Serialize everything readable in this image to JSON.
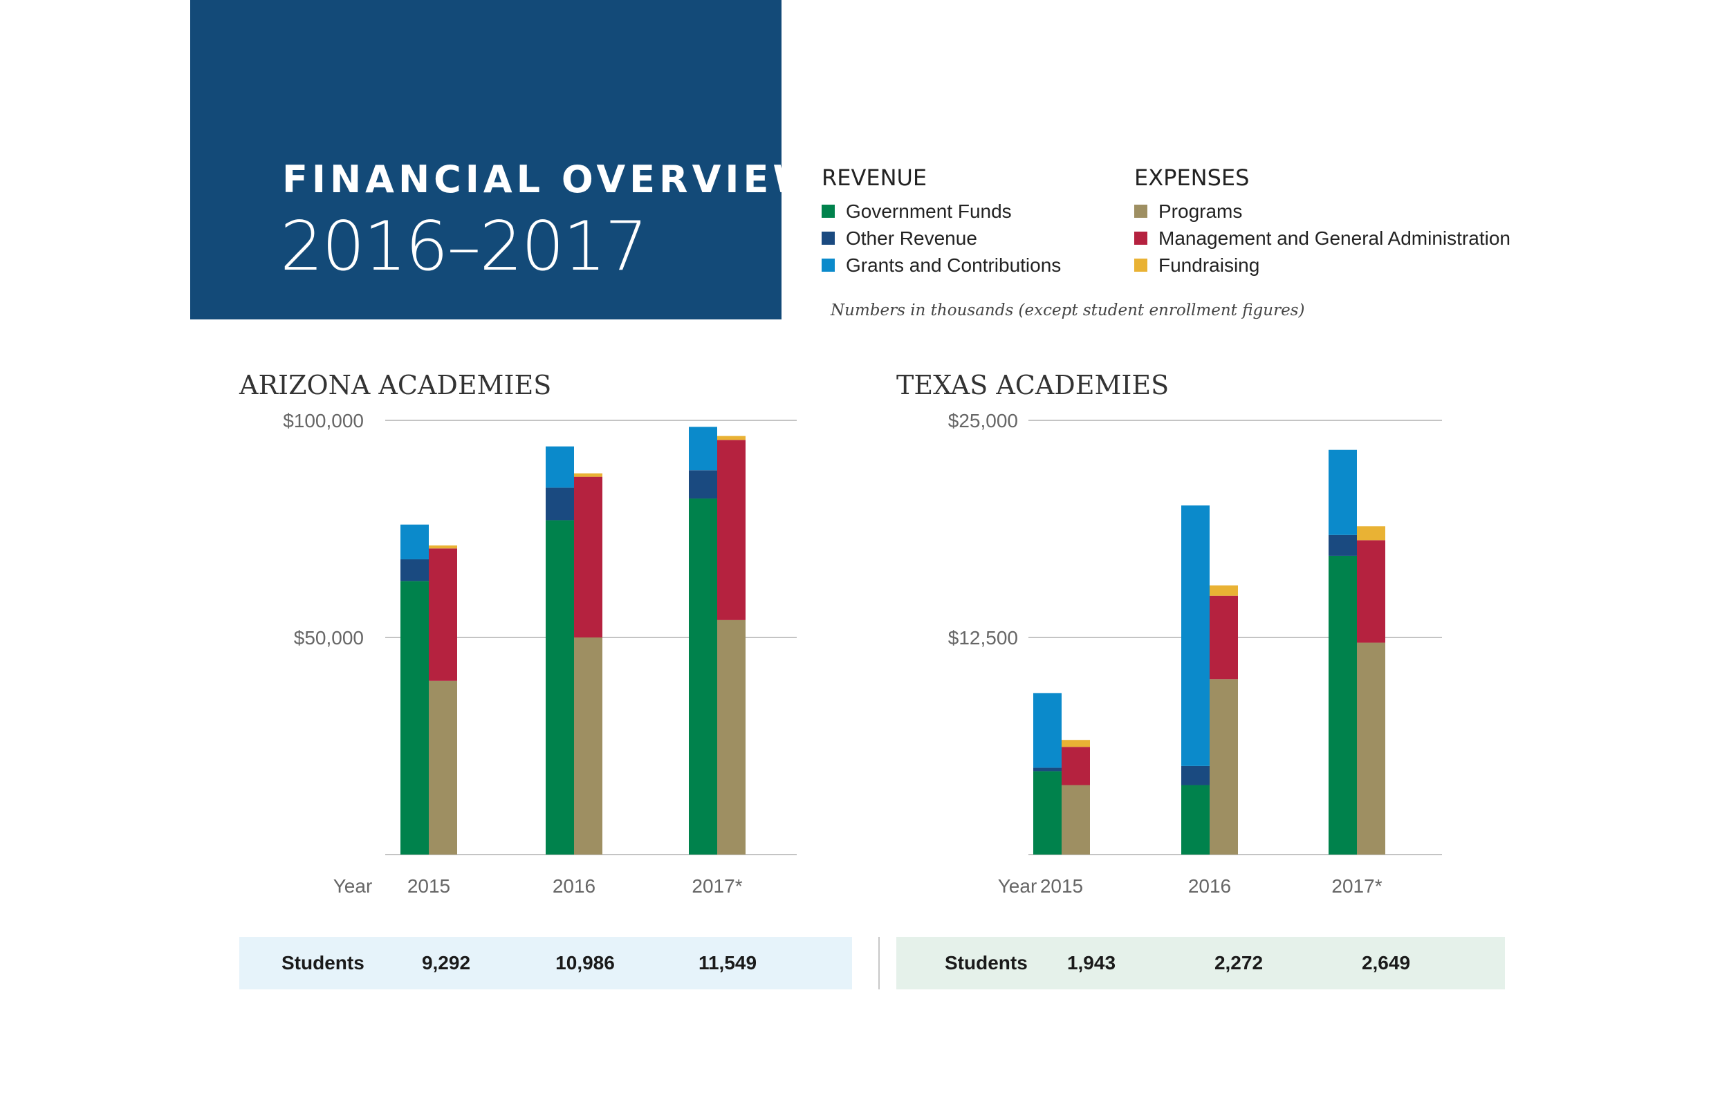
{
  "header": {
    "title": "FINANCIAL OVERVIEW",
    "years": "2016–2017"
  },
  "legend": {
    "revenue": {
      "heading": "REVENUE",
      "items": [
        {
          "label": "Government Funds",
          "color": "#00824c"
        },
        {
          "label": "Other Revenue",
          "color": "#1a4a80"
        },
        {
          "label": "Grants and Contributions",
          "color": "#0b8acb"
        }
      ]
    },
    "expenses": {
      "heading": "EXPENSES",
      "items": [
        {
          "label": "Programs",
          "color": "#9e8f62"
        },
        {
          "label": "Management and General Administration",
          "color": "#b5223f"
        },
        {
          "label": "Fundraising",
          "color": "#e9b234"
        }
      ]
    },
    "note": "Numbers in thousands (except student enrollment figures)"
  },
  "chart_data": [
    {
      "type": "bar",
      "title": "ARIZONA ACADEMIES",
      "xlabel": "Year",
      "categories": [
        "2015",
        "2016",
        "2017*"
      ],
      "yticks": [
        "$100,000",
        "$50,000"
      ],
      "ylim": [
        0,
        100000
      ],
      "revenue_series": [
        {
          "name": "Government Funds",
          "values": [
            63000,
            77000,
            82000
          ]
        },
        {
          "name": "Other Revenue",
          "values": [
            5000,
            7500,
            6500
          ]
        },
        {
          "name": "Grants and Contributions",
          "values": [
            8000,
            9500,
            10000
          ]
        }
      ],
      "expense_series": [
        {
          "name": "Programs",
          "values": [
            40000,
            50000,
            54000
          ]
        },
        {
          "name": "Management and General Administration",
          "values": [
            30500,
            37000,
            41500
          ]
        },
        {
          "name": "Fundraising",
          "values": [
            700,
            800,
            900
          ]
        }
      ],
      "students_label": "Students",
      "students": [
        "9,292",
        "10,986",
        "11,549"
      ]
    },
    {
      "type": "bar",
      "title": "TEXAS ACADEMIES",
      "xlabel": "Year",
      "categories": [
        "2015",
        "2016",
        "2017*"
      ],
      "yticks": [
        "$25,000",
        "$12,500"
      ],
      "ylim": [
        0,
        25000
      ],
      "revenue_series": [
        {
          "name": "Government Funds",
          "values": [
            4800,
            4000,
            17200
          ]
        },
        {
          "name": "Other Revenue",
          "values": [
            200,
            1100,
            1200
          ]
        },
        {
          "name": "Grants and Contributions",
          "values": [
            4300,
            15000,
            4900
          ]
        }
      ],
      "expense_series": [
        {
          "name": "Programs",
          "values": [
            4000,
            10100,
            12200
          ]
        },
        {
          "name": "Management and General Administration",
          "values": [
            2200,
            4800,
            5900
          ]
        },
        {
          "name": "Fundraising",
          "values": [
            400,
            600,
            800
          ]
        }
      ],
      "students_label": "Students",
      "students": [
        "1,943",
        "2,272",
        "2,649"
      ]
    }
  ]
}
